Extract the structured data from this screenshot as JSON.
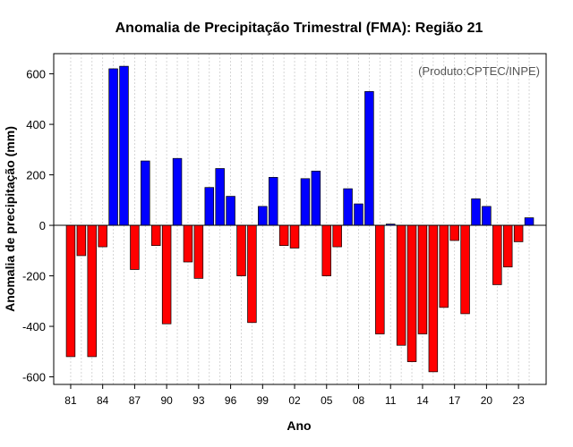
{
  "chart_data": {
    "type": "bar",
    "title": "Anomalia de Precipitação Trimestral (FMA): Região 21",
    "xlabel": "Ano",
    "ylabel": "Anomalia de precipitação (mm)",
    "annotation": "(Produto:CPTEC/INPE)",
    "ylim": [
      -630,
      680
    ],
    "yticks": [
      -600,
      -400,
      -200,
      0,
      200,
      400,
      600
    ],
    "xtick_labels": [
      "81",
      "84",
      "87",
      "90",
      "93",
      "96",
      "99",
      "02",
      "05",
      "08",
      "11",
      "14",
      "17",
      "20",
      "23"
    ],
    "xtick_every": 3,
    "grid": true,
    "positive_color": "#0000ff",
    "negative_color": "#ff0000",
    "years": [
      1981,
      1982,
      1983,
      1984,
      1985,
      1986,
      1987,
      1988,
      1989,
      1990,
      1991,
      1992,
      1993,
      1994,
      1995,
      1996,
      1997,
      1998,
      1999,
      2000,
      2001,
      2002,
      2003,
      2004,
      2005,
      2006,
      2007,
      2008,
      2009,
      2010,
      2011,
      2012,
      2013,
      2014,
      2015,
      2016,
      2017,
      2018,
      2019,
      2020,
      2021,
      2022,
      2023,
      2024
    ],
    "values": [
      -520,
      -120,
      -520,
      -85,
      620,
      630,
      -175,
      255,
      -80,
      -390,
      265,
      -145,
      -210,
      150,
      225,
      115,
      -200,
      -385,
      75,
      190,
      -80,
      -90,
      185,
      215,
      -200,
      -85,
      145,
      85,
      530,
      -430,
      5,
      -475,
      -540,
      -430,
      -580,
      -325,
      -60,
      -350,
      105,
      75,
      -235,
      -165,
      -65,
      30
    ]
  }
}
